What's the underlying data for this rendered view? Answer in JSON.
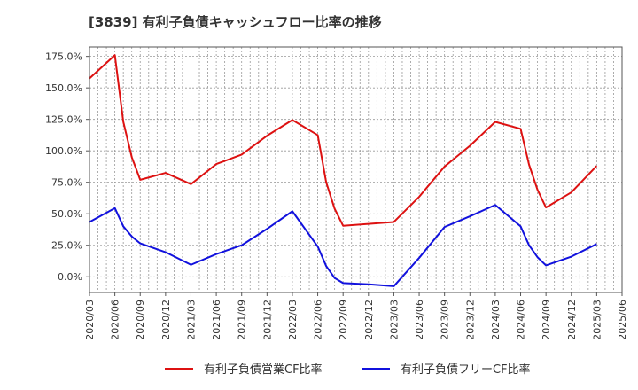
{
  "chart_data": {
    "type": "line",
    "title": "[3839]  有利子負債キャッシュフロー比率の推移",
    "xlabel": "",
    "ylabel": "",
    "ylim": [
      -12.5,
      182.5
    ],
    "yticks": [
      "0.0%",
      "25.0%",
      "50.0%",
      "75.0%",
      "100.0%",
      "125.0%",
      "150.0%",
      "175.0%"
    ],
    "ytick_values": [
      0,
      25,
      50,
      75,
      100,
      125,
      150,
      175
    ],
    "xticks": [
      "2020/03",
      "2020/06",
      "2020/09",
      "2020/12",
      "2021/03",
      "2021/06",
      "2021/09",
      "2021/12",
      "2022/03",
      "2022/06",
      "2022/09",
      "2022/12",
      "2023/03",
      "2023/06",
      "2023/09",
      "2023/12",
      "2024/03",
      "2024/06",
      "2024/09",
      "2024/12",
      "2025/03",
      "2025/06"
    ],
    "grid": true,
    "legend_position": "bottom",
    "series": [
      {
        "name": "有利子負債営業CF比率",
        "color": "#dd1111",
        "points": [
          [
            "2020/03",
            157.5
          ],
          [
            "2020/06",
            176
          ],
          [
            "2020/07",
            123
          ],
          [
            "2020/08",
            95
          ],
          [
            "2020/09",
            77
          ],
          [
            "2020/12",
            82.5
          ],
          [
            "2021/03",
            73.5
          ],
          [
            "2021/06",
            89.5
          ],
          [
            "2021/09",
            97
          ],
          [
            "2021/12",
            112
          ],
          [
            "2022/03",
            124.5
          ],
          [
            "2022/06",
            112.5
          ],
          [
            "2022/07",
            75
          ],
          [
            "2022/08",
            54
          ],
          [
            "2022/09",
            40.5
          ],
          [
            "2022/12",
            42
          ],
          [
            "2023/03",
            43.5
          ],
          [
            "2023/06",
            63.5
          ],
          [
            "2023/09",
            87.5
          ],
          [
            "2023/12",
            104
          ],
          [
            "2024/03",
            123
          ],
          [
            "2024/06",
            117.5
          ],
          [
            "2024/07",
            89
          ],
          [
            "2024/08",
            69
          ],
          [
            "2024/09",
            55
          ],
          [
            "2024/12",
            67
          ],
          [
            "2025/03",
            88
          ]
        ]
      },
      {
        "name": "有利子負債フリーCF比率",
        "color": "#1111dd",
        "points": [
          [
            "2020/03",
            43.5
          ],
          [
            "2020/06",
            54.5
          ],
          [
            "2020/07",
            40
          ],
          [
            "2020/08",
            32
          ],
          [
            "2020/09",
            26.5
          ],
          [
            "2020/12",
            19.5
          ],
          [
            "2021/03",
            9.5
          ],
          [
            "2021/06",
            18
          ],
          [
            "2021/09",
            25
          ],
          [
            "2021/12",
            38
          ],
          [
            "2022/03",
            52
          ],
          [
            "2022/06",
            24
          ],
          [
            "2022/07",
            8.5
          ],
          [
            "2022/08",
            -1
          ],
          [
            "2022/09",
            -5
          ],
          [
            "2022/12",
            -6
          ],
          [
            "2023/03",
            -7.5
          ],
          [
            "2023/06",
            15
          ],
          [
            "2023/09",
            39.5
          ],
          [
            "2023/12",
            48
          ],
          [
            "2024/03",
            57
          ],
          [
            "2024/06",
            40
          ],
          [
            "2024/07",
            25
          ],
          [
            "2024/08",
            15.5
          ],
          [
            "2024/09",
            9
          ],
          [
            "2024/12",
            16
          ],
          [
            "2025/03",
            26
          ]
        ]
      }
    ]
  }
}
